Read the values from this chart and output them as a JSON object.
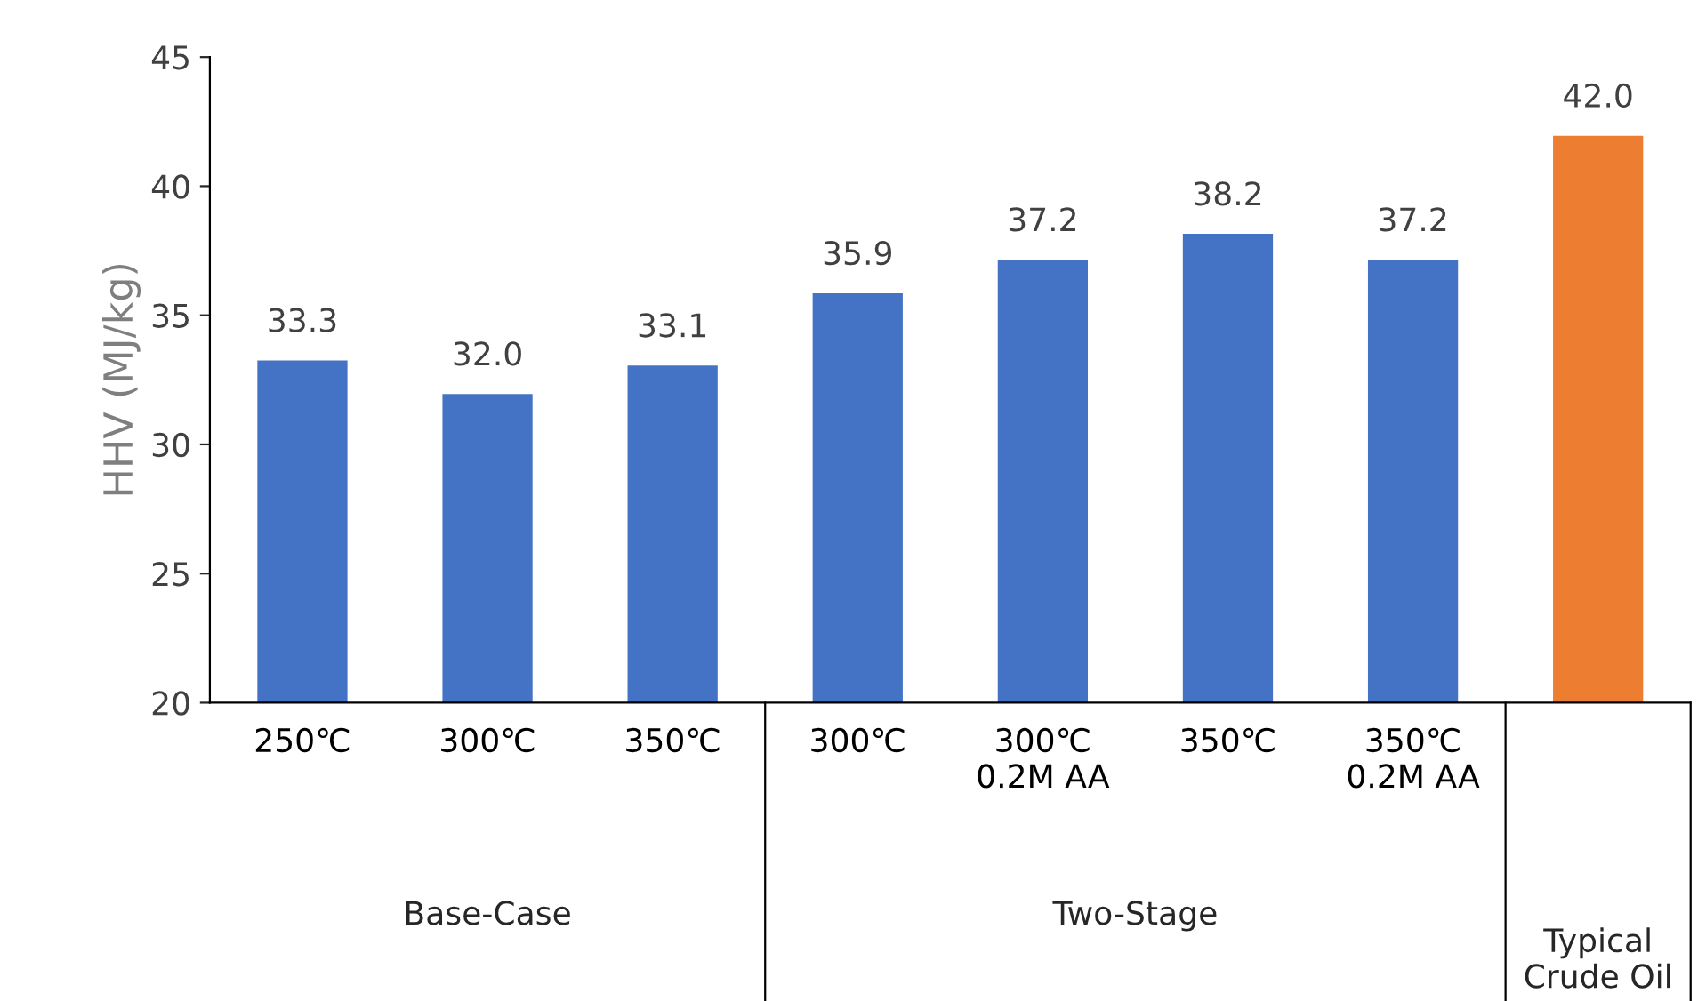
{
  "chart_data": {
    "type": "bar",
    "categories": [
      "250℃",
      "300℃",
      "350℃",
      "300℃",
      "300℃\n0.2M AA",
      "350℃",
      "350℃\n0.2M AA",
      null
    ],
    "value_labels": [
      "33.3",
      "32.0",
      "33.1",
      "35.9",
      "37.2",
      "38.2",
      "37.2",
      "42.0"
    ],
    "values": [
      33.3,
      32.0,
      33.1,
      35.9,
      37.2,
      38.2,
      37.2,
      42.0
    ],
    "colors": [
      "#4472c4",
      "#4472c4",
      "#4472c4",
      "#4472c4",
      "#4472c4",
      "#4472c4",
      "#4472c4",
      "#ed7d31"
    ],
    "ylabel": "HHV (MJ/kg)",
    "ylim": [
      20,
      45
    ],
    "yticks": [
      20,
      25,
      30,
      35,
      40,
      45
    ],
    "annotations": [
      "Base-Case",
      "Two-Stage",
      "Typical\nCrude Oil"
    ],
    "grid": false,
    "legend": false
  }
}
